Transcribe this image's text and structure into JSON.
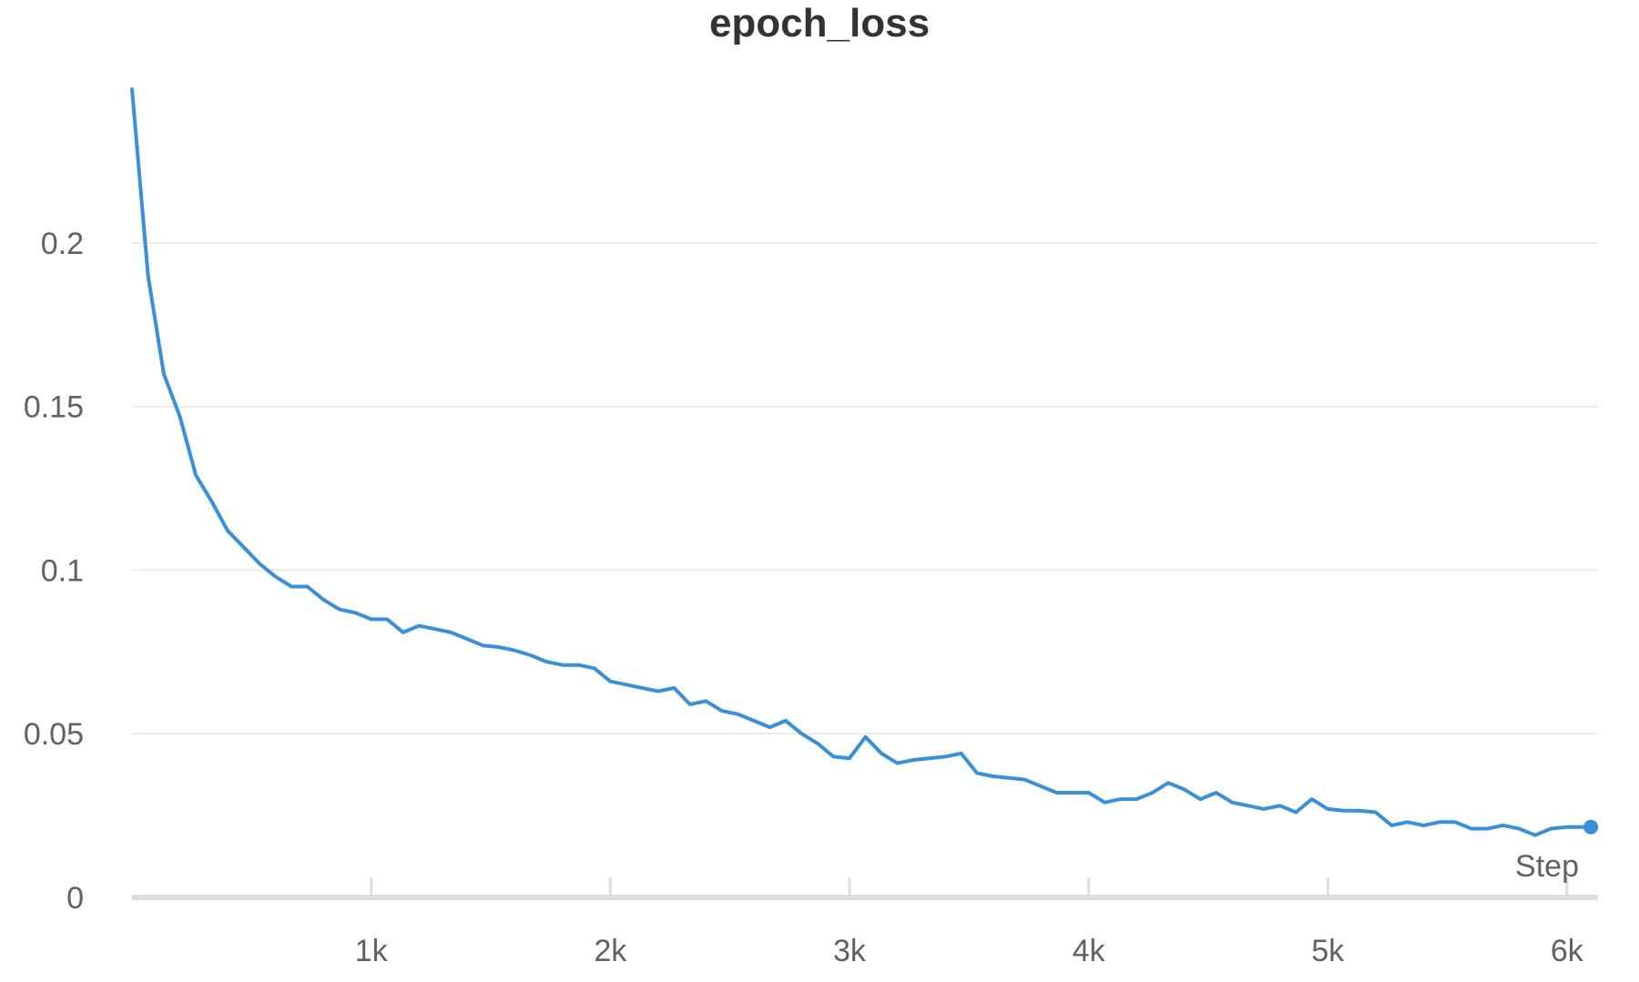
{
  "chart_data": {
    "type": "line",
    "title": "epoch_loss",
    "xlabel": "Step",
    "ylabel": "",
    "xlim": [
      0,
      6130
    ],
    "ylim": [
      0,
      0.247
    ],
    "grid": true,
    "line_color": "#3a8fd9",
    "grid_color": "#e6e6e6",
    "axis_color": "#dddddd",
    "y_ticks": [
      {
        "value": 0,
        "label": "0"
      },
      {
        "value": 0.05,
        "label": "0.05"
      },
      {
        "value": 0.1,
        "label": "0.1"
      },
      {
        "value": 0.15,
        "label": "0.15"
      },
      {
        "value": 0.2,
        "label": "0.2"
      }
    ],
    "x_ticks": [
      {
        "value": 1000,
        "label": "1k"
      },
      {
        "value": 2000,
        "label": "2k"
      },
      {
        "value": 3000,
        "label": "3k"
      },
      {
        "value": 4000,
        "label": "4k"
      },
      {
        "value": 5000,
        "label": "5k"
      },
      {
        "value": 6000,
        "label": "6k"
      }
    ],
    "series": [
      {
        "x": [
          0,
          67,
          133,
          200,
          267,
          333,
          400,
          467,
          533,
          600,
          667,
          733,
          800,
          867,
          933,
          1000,
          1067,
          1133,
          1200,
          1267,
          1333,
          1400,
          1467,
          1533,
          1600,
          1667,
          1733,
          1800,
          1867,
          1933,
          2000,
          2067,
          2133,
          2200,
          2267,
          2333,
          2400,
          2467,
          2533,
          2600,
          2667,
          2733,
          2800,
          2867,
          2933,
          3000,
          3067,
          3133,
          3200,
          3267,
          3333,
          3400,
          3467,
          3533,
          3600,
          3667,
          3733,
          3800,
          3867,
          3933,
          4000,
          4067,
          4133,
          4200,
          4267,
          4333,
          4400,
          4467,
          4533,
          4600,
          4667,
          4733,
          4800,
          4867,
          4933,
          5000,
          5067,
          5133,
          5200,
          5267,
          5333,
          5400,
          5467,
          5533,
          5600,
          5667,
          5733,
          5800,
          5867,
          5933,
          6000,
          6067,
          6100
        ],
        "y": [
          0.247,
          0.19,
          0.16,
          0.147,
          0.129,
          0.121,
          0.112,
          0.107,
          0.102,
          0.098,
          0.095,
          0.095,
          0.091,
          0.088,
          0.087,
          0.085,
          0.085,
          0.081,
          0.083,
          0.082,
          0.081,
          0.079,
          0.077,
          0.0765,
          0.0755,
          0.074,
          0.072,
          0.071,
          0.071,
          0.07,
          0.066,
          0.065,
          0.064,
          0.063,
          0.064,
          0.059,
          0.06,
          0.057,
          0.056,
          0.054,
          0.052,
          0.054,
          0.05,
          0.047,
          0.043,
          0.0425,
          0.049,
          0.044,
          0.041,
          0.042,
          0.0425,
          0.043,
          0.044,
          0.038,
          0.037,
          0.0365,
          0.036,
          0.034,
          0.032,
          0.032,
          0.032,
          0.029,
          0.03,
          0.03,
          0.032,
          0.035,
          0.033,
          0.03,
          0.032,
          0.029,
          0.028,
          0.027,
          0.028,
          0.026,
          0.03,
          0.027,
          0.0265,
          0.0265,
          0.026,
          0.022,
          0.023,
          0.022,
          0.023,
          0.023,
          0.021,
          0.021,
          0.022,
          0.021,
          0.019,
          0.021,
          0.0215,
          0.0215,
          0.0215
        ]
      }
    ]
  }
}
